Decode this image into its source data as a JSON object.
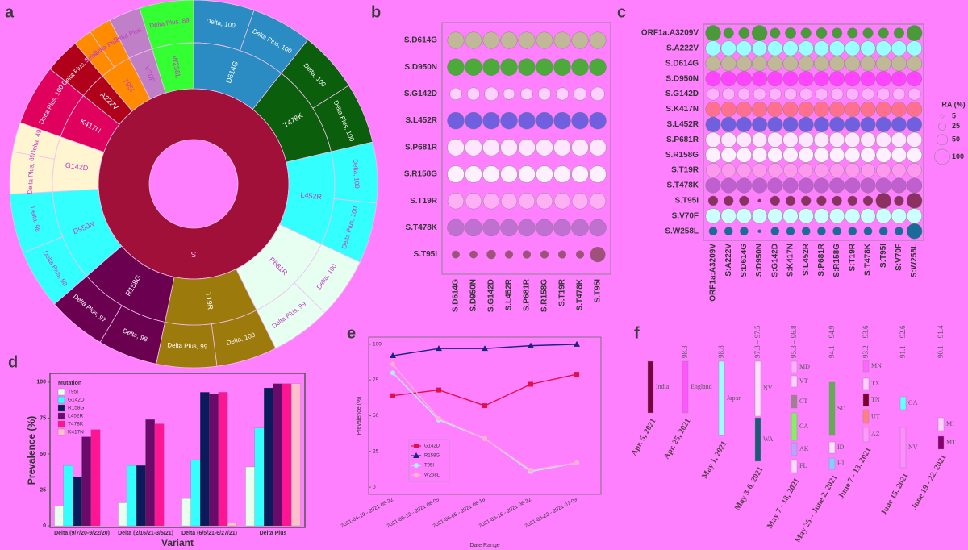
{
  "chart_data": [
    {
      "type": "sunburst",
      "panel": "a",
      "center": "S",
      "center_color": "#a01038",
      "segments": [
        {
          "name": "D614G",
          "color": "#2b8cc4",
          "children": [
            {
              "label": "Delta, 100",
              "value": 100
            },
            {
              "label": "Delta Plus, 100",
              "value": 100
            }
          ]
        },
        {
          "name": "T478K",
          "color": "#0b5e0b",
          "children": [
            {
              "label": "Delta, 100",
              "value": 100
            },
            {
              "label": "Delta Plus, 100",
              "value": 100
            }
          ]
        },
        {
          "name": "L452R",
          "color": "#33ffff",
          "children": [
            {
              "label": "Delta, 100",
              "value": 100
            },
            {
              "label": "Delta Plus, 100",
              "value": 100
            }
          ]
        },
        {
          "name": "P681R",
          "color": "#e6fff0",
          "children": [
            {
              "label": "Delta, 100",
              "value": 100
            },
            {
              "label": "Delta Plus, 99",
              "value": 99
            }
          ]
        },
        {
          "name": "T19R",
          "color": "#9c7a0c",
          "children": [
            {
              "label": "Delta, 100",
              "value": 100
            },
            {
              "label": "Delta Plus, 99",
              "value": 99
            }
          ]
        },
        {
          "name": "R158G",
          "color": "#6b0050",
          "children": [
            {
              "label": "Delta, 98",
              "value": 98
            },
            {
              "label": "Delta Plus, 97",
              "value": 97
            }
          ]
        },
        {
          "name": "D950N",
          "color": "#33ffff",
          "children": [
            {
              "label": "Delta Plus, 98",
              "value": 98
            },
            {
              "label": "Delta, 98",
              "value": 98
            }
          ]
        },
        {
          "name": "G142D",
          "color": "#fff5d0",
          "children": [
            {
              "label": "Delta Plus, 69",
              "value": 69
            },
            {
              "label": "Delta, 49",
              "value": 49
            }
          ]
        },
        {
          "name": "K417N",
          "color": "#e0005e",
          "children": [
            {
              "label": "Delta Plus, 100",
              "value": 100
            }
          ]
        },
        {
          "name": "A222V",
          "color": "#b0001a",
          "children": [
            {
              "label": "Delta Plus, 58",
              "value": 58
            }
          ]
        },
        {
          "name": "T95I",
          "color": "#ff8c00",
          "children": [
            {
              "label": "Delta, 31",
              "value": 31
            },
            {
              "label": "Delta Plus, 37",
              "value": 37
            }
          ]
        },
        {
          "name": "V70F",
          "color": "#c080c8",
          "children": [
            {
              "label": "Delta Plus, 52",
              "value": 52
            }
          ]
        },
        {
          "name": "W258L",
          "color": "#33ff33",
          "children": [
            {
              "label": "Delta Plus, 89",
              "value": 89
            }
          ]
        }
      ]
    },
    {
      "type": "bubble",
      "panel": "b",
      "rows": [
        "S.D614G",
        "S.D950N",
        "S.G142D",
        "S.L452R",
        "S.P681R",
        "S.R158G",
        "S.T19R",
        "S.T478K",
        "S.T95I"
      ],
      "columns": [
        "S.D614G",
        "S.D950N",
        "S.G142D",
        "S.L452R",
        "S.P681R",
        "S.R158G",
        "S.T19R",
        "S.T478K",
        "S.T95I"
      ],
      "colors": [
        "#c0b898",
        "#4caa3a",
        "#ffd0ff",
        "#7060e0",
        "#ffe6ff",
        "#fff0ff",
        "#ffb0f4",
        "#c070d0",
        "#a0507a"
      ],
      "values": [
        [
          95,
          95,
          95,
          95,
          95,
          95,
          95,
          95,
          95
        ],
        [
          100,
          100,
          100,
          100,
          100,
          100,
          100,
          100,
          100
        ],
        [
          50,
          55,
          65,
          45,
          50,
          55,
          55,
          60,
          65
        ],
        [
          100,
          100,
          100,
          100,
          100,
          100,
          100,
          100,
          100
        ],
        [
          100,
          100,
          100,
          100,
          100,
          100,
          100,
          100,
          100
        ],
        [
          100,
          100,
          100,
          100,
          100,
          100,
          100,
          100,
          100
        ],
        [
          90,
          90,
          90,
          90,
          90,
          90,
          90,
          90,
          90
        ],
        [
          100,
          100,
          100,
          100,
          100,
          100,
          100,
          100,
          100
        ],
        [
          20,
          20,
          28,
          22,
          22,
          22,
          22,
          22,
          80
        ]
      ]
    },
    {
      "type": "bubble",
      "panel": "c",
      "rows": [
        "ORF1a.A3209V",
        "S.A222V",
        "S.D614G",
        "S.D950N",
        "S.G142D",
        "S.K417N",
        "S.L452R",
        "S.P681R",
        "S.R158G",
        "S.T19R",
        "S.T478K",
        "S.T95I",
        "S.V70F",
        "S.W258L"
      ],
      "columns": [
        "ORF1a:A3209V",
        "S:A222V",
        "S:D614G",
        "S:D950N",
        "S:G142D",
        "S:K417N",
        "S:L452R",
        "S:P681R",
        "S:R158G",
        "S:T19R",
        "S:T478K",
        "S:T95I",
        "S:V70F",
        "S:W258L"
      ],
      "colors": [
        "#4a9a3a",
        "#99ffff",
        "#c0b898",
        "#ff44ff",
        "#ffb0ff",
        "#ff7090",
        "#7060e0",
        "#ffe6ff",
        "#fff0ff",
        "#ff99ee",
        "#c060d0",
        "#8b3060",
        "#ccffff",
        "#1a6a9a"
      ],
      "values": [
        [
          100,
          45,
          50,
          100,
          45,
          50,
          45,
          50,
          45,
          45,
          45,
          45,
          45,
          100
        ],
        [
          95,
          95,
          95,
          95,
          95,
          95,
          95,
          95,
          95,
          95,
          95,
          95,
          95,
          95
        ],
        [
          95,
          95,
          95,
          95,
          95,
          95,
          95,
          95,
          95,
          95,
          95,
          95,
          95,
          95
        ],
        [
          95,
          95,
          95,
          95,
          95,
          95,
          95,
          95,
          95,
          95,
          95,
          95,
          95,
          95
        ],
        [
          65,
          65,
          65,
          65,
          65,
          65,
          65,
          65,
          65,
          65,
          65,
          65,
          65,
          65
        ],
        [
          95,
          95,
          95,
          95,
          95,
          95,
          95,
          95,
          95,
          95,
          95,
          95,
          95,
          95
        ],
        [
          95,
          95,
          95,
          95,
          95,
          95,
          95,
          95,
          95,
          95,
          95,
          95,
          95,
          95
        ],
        [
          95,
          95,
          95,
          95,
          95,
          95,
          95,
          95,
          95,
          95,
          95,
          95,
          95,
          95
        ],
        [
          95,
          95,
          95,
          95,
          95,
          95,
          95,
          95,
          95,
          95,
          95,
          95,
          95,
          95
        ],
        [
          85,
          85,
          85,
          85,
          85,
          85,
          85,
          85,
          85,
          85,
          85,
          85,
          85,
          85
        ],
        [
          95,
          95,
          95,
          95,
          95,
          95,
          95,
          95,
          95,
          95,
          95,
          95,
          95,
          95
        ],
        [
          40,
          40,
          40,
          5,
          40,
          40,
          40,
          40,
          40,
          40,
          40,
          100,
          40,
          100
        ],
        [
          95,
          95,
          95,
          95,
          95,
          95,
          95,
          95,
          95,
          95,
          95,
          95,
          95,
          95
        ],
        [
          30,
          30,
          30,
          5,
          30,
          30,
          30,
          30,
          30,
          30,
          30,
          30,
          30,
          100
        ]
      ],
      "size_legend": {
        "title": "RA (%)",
        "values": [
          5,
          25,
          50,
          100
        ]
      }
    },
    {
      "type": "bar",
      "panel": "d",
      "categories": [
        "Delta (9/7/20-9/22/20)",
        "Delta (2/16/21-3/5/21)",
        "Delta (6/5/21-6/27/21)",
        "Delta Plus"
      ],
      "series": [
        {
          "name": "T95I",
          "color": "#e8fff0",
          "values": [
            14,
            16,
            19,
            41
          ]
        },
        {
          "name": "G142D",
          "color": "#33ffff",
          "values": [
            42,
            42,
            46,
            68
          ]
        },
        {
          "name": "R158G",
          "color": "#0a1a5a",
          "values": [
            34,
            42,
            93,
            96
          ]
        },
        {
          "name": "L452R",
          "color": "#6a0a6a",
          "values": [
            62,
            74,
            92,
            99
          ]
        },
        {
          "name": "T478K",
          "color": "#ff1493",
          "values": [
            67,
            71,
            93,
            99
          ]
        },
        {
          "name": "K417N",
          "color": "#ffc0cb",
          "values": [
            0,
            0,
            2,
            99
          ]
        }
      ],
      "ylim": [
        0,
        105
      ],
      "yticks": [
        0,
        25,
        50,
        75,
        100
      ],
      "xlabel": "Variant",
      "ylabel": "Prevalence (%)",
      "legend_title": "Mutation",
      "legend": "upper left"
    },
    {
      "type": "line",
      "panel": "e",
      "categories": [
        "2021-04-19 - 2021-05-22",
        "2021-05-22 - 2021-06-05",
        "2021-06-05 - 2021-06-16",
        "2021-06-16 - 2021-06-22",
        "2021-06-22 - 2021-07-09"
      ],
      "series": [
        {
          "name": "G142D",
          "color": "#e0104a",
          "marker": "square",
          "values": [
            64,
            68,
            57,
            72,
            79
          ]
        },
        {
          "name": "R158G",
          "color": "#1a237e",
          "marker": "triangle",
          "values": [
            92,
            97,
            97,
            99,
            100
          ]
        },
        {
          "name": "T95I",
          "color": "#b0f0ff",
          "marker": "circle",
          "values": [
            80,
            47,
            34,
            11,
            17
          ]
        },
        {
          "name": "W258L",
          "color": "#ffb0d0",
          "marker": "circle",
          "values": [
            86,
            48,
            34,
            12,
            17
          ]
        }
      ],
      "ylim": [
        -5,
        105
      ],
      "yticks": [
        0,
        25,
        50,
        75,
        100
      ],
      "xlabel": "Date Range",
      "ylabel": "Prevalence (%)",
      "legend": "lower left"
    }
  ],
  "timeline": {
    "panel": "f",
    "columns": [
      {
        "date": "Apr. 5, 2021",
        "items": [
          {
            "label": "India",
            "color": "#7a0040"
          }
        ]
      },
      {
        "date": "Apr. 25, 2021",
        "range": "98.3",
        "items": [
          {
            "label": "England",
            "color": "#ff55ff"
          }
        ]
      },
      {
        "date": "May 1, 2021",
        "range": "98.8",
        "items": [
          {
            "label": "Japan",
            "color": "#99ffff"
          }
        ]
      },
      {
        "date": "May 3-6, 2021",
        "range": "97.3 – 97.5",
        "items": [
          {
            "label": "NY",
            "color": "#ffe0ff"
          },
          {
            "label": "WA",
            "color": "#1a5a78"
          }
        ]
      },
      {
        "date": "May 7 - 18, 2021",
        "range": "95.3 – 96.8",
        "items": [
          {
            "label": "MD",
            "color": "#ffb0ff"
          },
          {
            "label": "VT",
            "color": "#ffd0ff"
          },
          {
            "label": "CT",
            "color": "#a08090"
          },
          {
            "label": "CA",
            "color": "#88ee66"
          },
          {
            "label": "AK",
            "color": "#c0a0ff"
          },
          {
            "label": "FL",
            "color": "#ffd8ff"
          }
        ]
      },
      {
        "date": "May 25 – June 2, 2021",
        "range": "94.1 – 94.9",
        "items": [
          {
            "label": "SD",
            "color": "#66aa55"
          },
          {
            "label": "ID",
            "color": "#ffe0ff"
          },
          {
            "label": "HI",
            "color": "#88ccff"
          }
        ]
      },
      {
        "date": "June 7 - 13, 2021",
        "range": "93.2 – 93.6",
        "items": [
          {
            "label": "MN",
            "color": "#ff66ff"
          },
          {
            "label": "TX",
            "color": "#ffd0ff"
          },
          {
            "label": "TN",
            "color": "#7a0030"
          },
          {
            "label": "UT",
            "color": "#ff8080"
          },
          {
            "label": "AZ",
            "color": "#ff99ff"
          }
        ]
      },
      {
        "date": "June 15, 2021",
        "range": "91.1 – 92.6",
        "items": [
          {
            "label": "GA",
            "color": "#66ffff"
          },
          {
            "label": "NV",
            "color": "#ff8cff"
          }
        ]
      },
      {
        "date": "June 19 - 22, 2021",
        "range": "90.1 – 91.4",
        "items": [
          {
            "label": "MI",
            "color": "#ffd0ff"
          },
          {
            "label": "MT",
            "color": "#8a0070"
          }
        ]
      }
    ]
  }
}
